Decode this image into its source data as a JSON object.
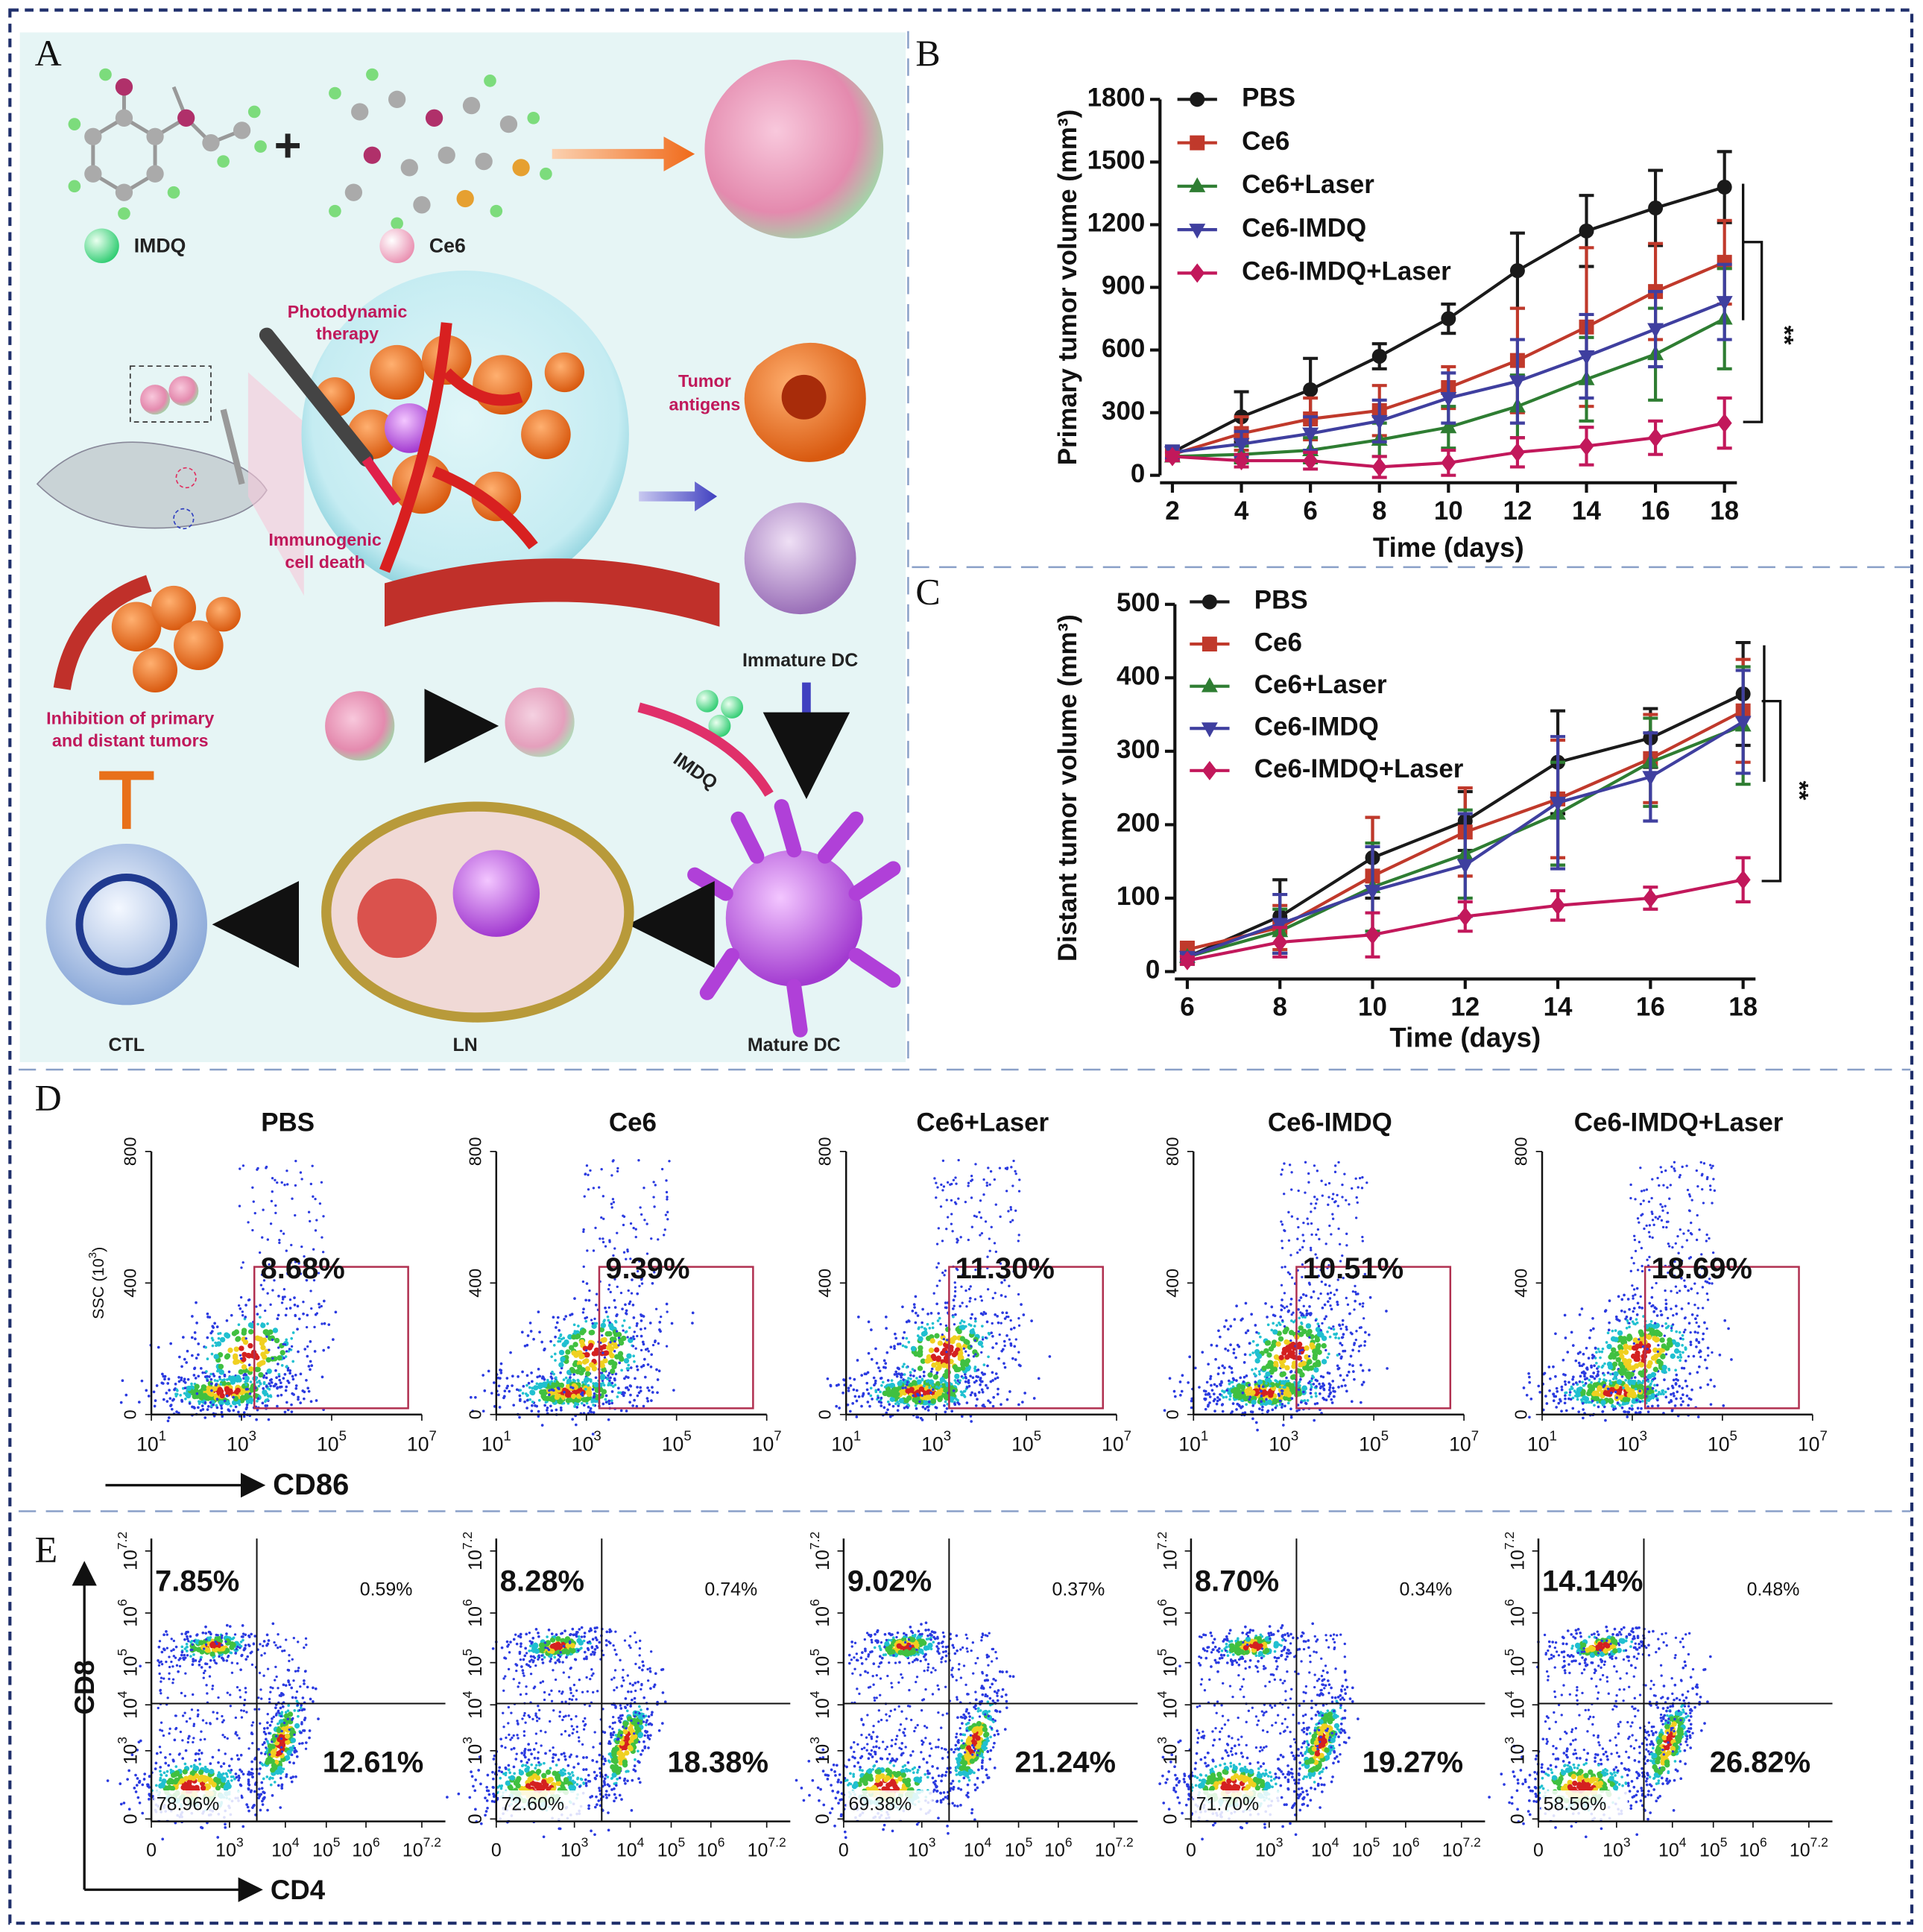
{
  "panel_labels": [
    "A",
    "B",
    "C",
    "D",
    "E"
  ],
  "panel_a": {
    "imdq": "IMDQ",
    "ce6": "Ce6",
    "plus": "+",
    "pdt": [
      "Photodynamic",
      "therapy"
    ],
    "antigens": [
      "Tumor",
      "antigens"
    ],
    "icd": [
      "Immunogenic",
      "cell death"
    ],
    "immature": "Immature DC",
    "arrow_imdq": "IMDQ",
    "inhibition": [
      "Inhibition of primary",
      "and distant tumors"
    ],
    "ctl": "CTL",
    "ln": "LN",
    "mature": "Mature DC"
  },
  "chart_data": [
    {
      "type": "line",
      "xlabel": "Time (days)",
      "ylabel": "Primary tumor volume (mm³)",
      "x": [
        2,
        4,
        6,
        8,
        10,
        12,
        14,
        16,
        18
      ],
      "xlim": [
        2,
        18
      ],
      "xticks": [
        2,
        4,
        6,
        8,
        10,
        12,
        14,
        16,
        18
      ],
      "ylim": [
        0,
        1800
      ],
      "yticks": [
        0,
        300,
        600,
        900,
        1200,
        1500,
        1800
      ],
      "annotation": "**",
      "series": [
        {
          "name": "PBS",
          "color": "#1a1a1a",
          "marker": "circle",
          "values": [
            110,
            280,
            410,
            570,
            750,
            980,
            1170,
            1280,
            1380
          ],
          "errors": [
            30,
            120,
            150,
            60,
            70,
            180,
            170,
            180,
            170
          ]
        },
        {
          "name": "Ce6",
          "color": "#c0392b",
          "marker": "square",
          "values": [
            100,
            200,
            270,
            310,
            420,
            550,
            710,
            880,
            1020
          ],
          "errors": [
            30,
            80,
            100,
            120,
            100,
            250,
            380,
            230,
            200
          ]
        },
        {
          "name": "Ce6+Laser",
          "color": "#2e7d32",
          "marker": "triangle-up",
          "values": [
            90,
            100,
            120,
            170,
            230,
            330,
            460,
            580,
            750
          ],
          "errors": [
            20,
            40,
            60,
            80,
            100,
            150,
            200,
            220,
            240
          ]
        },
        {
          "name": "Ce6-IMDQ",
          "color": "#3f3f9f",
          "marker": "triangle-down",
          "values": [
            110,
            150,
            200,
            260,
            370,
            450,
            570,
            700,
            830
          ],
          "errors": [
            30,
            60,
            80,
            100,
            120,
            200,
            200,
            180,
            180
          ]
        },
        {
          "name": "Ce6-IMDQ+Laser",
          "color": "#c2185b",
          "marker": "diamond",
          "values": [
            90,
            70,
            70,
            40,
            60,
            110,
            140,
            180,
            250
          ],
          "errors": [
            20,
            30,
            40,
            50,
            60,
            70,
            90,
            80,
            120
          ]
        }
      ]
    },
    {
      "type": "line",
      "xlabel": "Time (days)",
      "ylabel": "Distant tumor volume (mm³)",
      "x": [
        6,
        8,
        10,
        12,
        14,
        16,
        18
      ],
      "xlim": [
        6,
        18
      ],
      "xticks": [
        6,
        8,
        10,
        12,
        14,
        16,
        18
      ],
      "ylim": [
        0,
        500
      ],
      "yticks": [
        0,
        100,
        200,
        300,
        400,
        500
      ],
      "annotation": "**",
      "series": [
        {
          "name": "PBS",
          "color": "#1a1a1a",
          "marker": "circle",
          "values": [
            20,
            75,
            155,
            205,
            285,
            318,
            378
          ],
          "errors": [
            10,
            50,
            55,
            40,
            70,
            40,
            70
          ]
        },
        {
          "name": "Ce6",
          "color": "#c0392b",
          "marker": "square",
          "values": [
            30,
            60,
            130,
            190,
            235,
            290,
            355
          ],
          "errors": [
            10,
            30,
            80,
            60,
            80,
            60,
            70
          ]
        },
        {
          "name": "Ce6+Laser",
          "color": "#2e7d32",
          "marker": "triangle-up",
          "values": [
            20,
            55,
            115,
            160,
            215,
            285,
            335
          ],
          "errors": [
            5,
            30,
            60,
            60,
            70,
            60,
            80
          ]
        },
        {
          "name": "Ce6-IMDQ",
          "color": "#3f3f9f",
          "marker": "triangle-down",
          "values": [
            20,
            65,
            110,
            145,
            230,
            265,
            340
          ],
          "errors": [
            5,
            40,
            60,
            70,
            90,
            60,
            70
          ]
        },
        {
          "name": "Ce6-IMDQ+Laser",
          "color": "#c2185b",
          "marker": "diamond",
          "values": [
            15,
            40,
            50,
            75,
            90,
            100,
            125
          ],
          "errors": [
            5,
            20,
            30,
            20,
            20,
            15,
            30
          ]
        }
      ]
    }
  ],
  "panel_d": {
    "titles": [
      "PBS",
      "Ce6",
      "Ce6+Laser",
      "Ce6-IMDQ",
      "Ce6-IMDQ+Laser"
    ],
    "percents": [
      "8.68%",
      "9.39%",
      "11.30%",
      "10.51%",
      "18.69%"
    ],
    "yticks": [
      "800",
      "400",
      "0"
    ],
    "xticks": [
      {
        "base": "10",
        "exp": "1"
      },
      {
        "base": "10",
        "exp": "3"
      },
      {
        "base": "10",
        "exp": "5"
      },
      {
        "base": "10",
        "exp": "7"
      }
    ],
    "ylabel": {
      "text": "SSC (10",
      "exp": "3",
      "close": ")"
    },
    "xlabel": "CD86"
  },
  "panel_e": {
    "top_left": [
      "7.85%",
      "8.28%",
      "9.02%",
      "8.70%",
      "14.14%"
    ],
    "top_right": [
      "0.59%",
      "0.74%",
      "0.37%",
      "0.34%",
      "0.48%"
    ],
    "bottom_right": [
      "12.61%",
      "18.38%",
      "21.24%",
      "19.27%",
      "26.82%"
    ],
    "bottom_left": [
      "78.96%",
      "72.60%",
      "69.38%",
      "71.70%",
      "58.56%"
    ],
    "ticks": [
      {
        "base": "0"
      },
      {
        "base": "10",
        "exp": "3"
      },
      {
        "base": "10",
        "exp": "4"
      },
      {
        "base": "10",
        "exp": "5"
      },
      {
        "base": "10",
        "exp": "6"
      },
      {
        "base": "10",
        "exp": "7.2"
      }
    ],
    "ylabel": "CD8",
    "xlabel": "CD4"
  }
}
